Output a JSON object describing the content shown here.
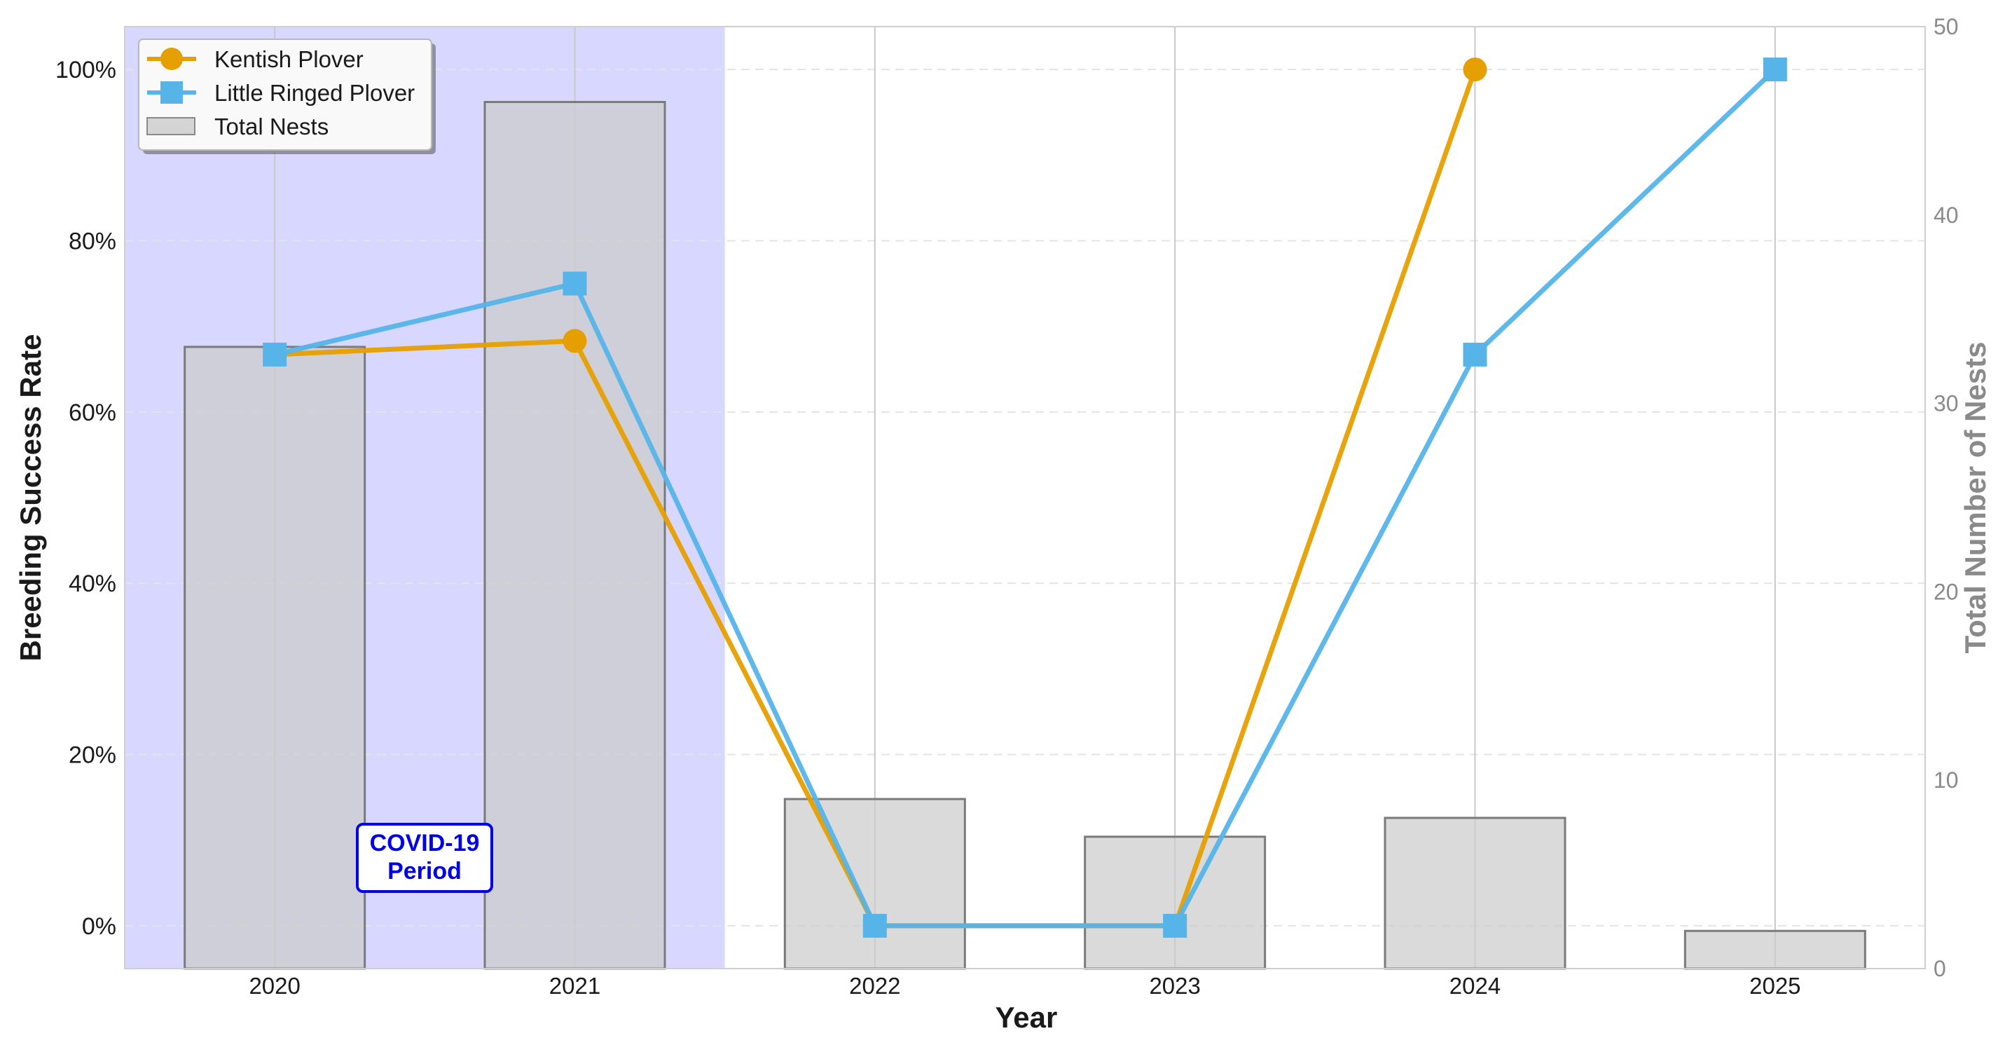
{
  "chart_data": {
    "type": "line",
    "x": [
      "2020",
      "2021",
      "2022",
      "2023",
      "2024",
      "2025"
    ],
    "series": [
      {
        "name": "Kentish Plover",
        "values": [
          0.667,
          0.683,
          0.0,
          0.0,
          1.0,
          null
        ],
        "color": "#E69F00",
        "marker": "circle"
      },
      {
        "name": "Little Ringed Plover",
        "values": [
          0.667,
          0.75,
          0.0,
          0.0,
          0.667,
          1.0
        ],
        "color": "#56B4E9",
        "marker": "square"
      }
    ],
    "bars": {
      "name": "Total Nests",
      "values": [
        33,
        46,
        9,
        7,
        8,
        2
      ],
      "color": "#cccccc"
    },
    "xlabel": "Year",
    "ylabel": "Breeding Success Rate",
    "y2label": "Total Number of Nests",
    "ylim": [
      -0.05,
      1.05
    ],
    "y2lim": [
      0,
      50
    ],
    "yticks": [
      "0%",
      "20%",
      "40%",
      "60%",
      "80%",
      "100%"
    ],
    "y2ticks": [
      "0",
      "10",
      "20",
      "30",
      "40",
      "50"
    ],
    "highlight": {
      "label_line1": "COVID-19",
      "label_line2": "Period",
      "from": "2020",
      "to": "2021",
      "color": "#d7d7ff"
    },
    "grid": true,
    "legend_position": "top-left"
  }
}
